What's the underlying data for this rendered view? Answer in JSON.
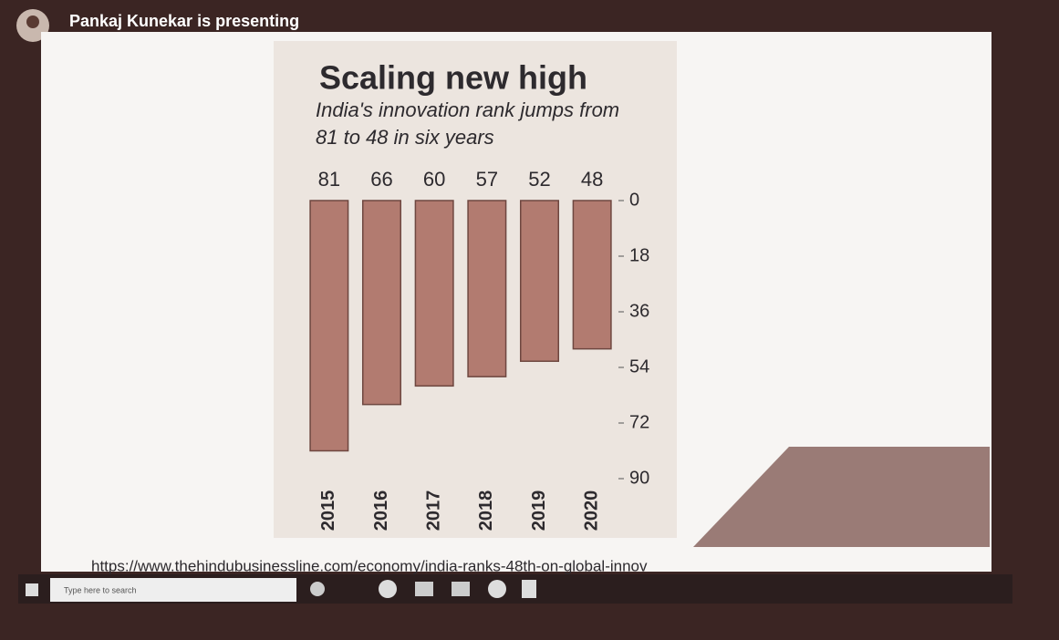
{
  "presenter": "Pankaj Kunekar is presenting",
  "chart_data": {
    "type": "bar",
    "title": "Scaling new high",
    "subtitle": "India's innovation rank jumps from 81 to 48 in six years",
    "categories": [
      "2015",
      "2016",
      "2017",
      "2018",
      "2019",
      "2020"
    ],
    "values": [
      81,
      66,
      60,
      57,
      52,
      48
    ],
    "color": "#b27b70",
    "ylim": [
      0,
      90
    ],
    "yticks": [
      0,
      18,
      36,
      54,
      72,
      90
    ],
    "inverted": true,
    "axis_side": "right"
  },
  "url": "https://www.thehindubusinessline.com/economy/india-ranks-48th-on-global-innov",
  "taskbar": {
    "search": "Type here to search"
  }
}
